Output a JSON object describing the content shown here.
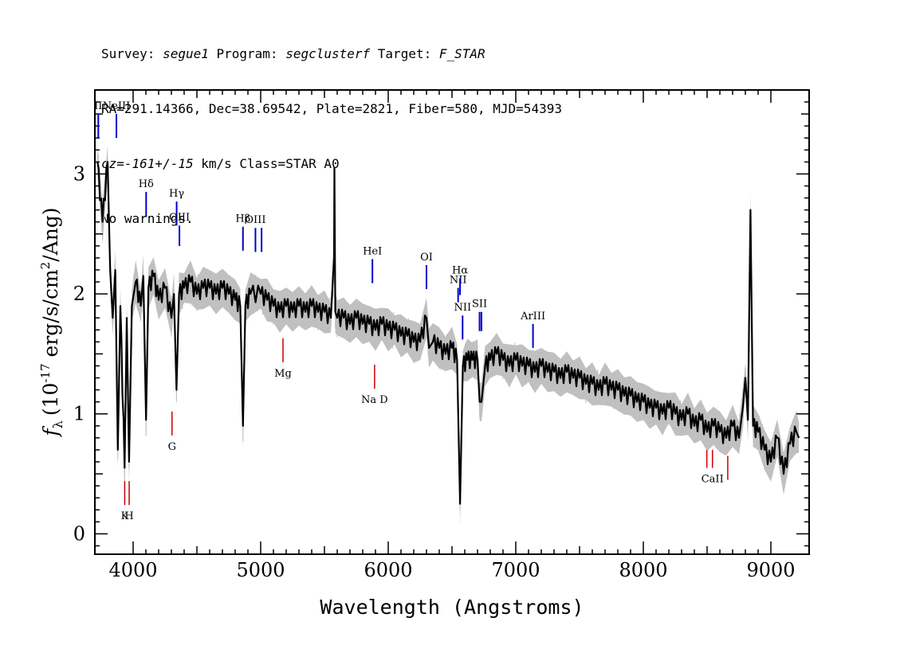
{
  "header": {
    "line1": {
      "survey_label": "Survey: ",
      "survey": "segue1",
      "program_label": " Program: ",
      "program": "segclusterf",
      "target_label": " Target: ",
      "target": "F_STAR"
    },
    "line2": "RA=291.14366, Dec=38.69542, Plate=2821, Fiber=580, MJD=54393",
    "line3": {
      "cz": "cz=-161+/-15",
      "rest": " km/s Class=STAR A0"
    },
    "line4": "No warnings."
  },
  "colors": {
    "flux": "#000000",
    "error_band": "#c0c0c0",
    "emission_marker": "#0000cc",
    "absorption_marker": "#cc0000",
    "axes": "#000000"
  },
  "chart_data": {
    "type": "line",
    "xlabel": "Wavelength (Angstroms)",
    "ylabel": {
      "symbol": "f",
      "subscript": "λ",
      "unit": "(10",
      "exp": "-17",
      "rest": " erg/s/cm",
      "exp2": "2",
      "tail": "/Ang)"
    },
    "xlim": [
      3700,
      9300
    ],
    "ylim": [
      -0.17,
      3.7
    ],
    "x_ticks": [
      4000,
      5000,
      6000,
      7000,
      8000,
      9000
    ],
    "y_ticks": [
      0,
      1,
      2,
      3
    ],
    "grid": false,
    "series": [
      {
        "values_xy": [
          [
            3720,
            3.1
          ],
          [
            3760,
            2.6
          ],
          [
            3800,
            3.1
          ],
          [
            3820,
            2.2
          ],
          [
            3840,
            1.8
          ],
          [
            3860,
            2.2
          ],
          [
            3880,
            0.7
          ],
          [
            3900,
            1.9
          ],
          [
            3933,
            0.55
          ],
          [
            3950,
            1.8
          ],
          [
            3968,
            0.6
          ],
          [
            3990,
            1.9
          ],
          [
            4020,
            2.1
          ],
          [
            4060,
            1.9
          ],
          [
            4080,
            2.15
          ],
          [
            4101,
            0.95
          ],
          [
            4120,
            2.05
          ],
          [
            4160,
            2.15
          ],
          [
            4200,
            1.95
          ],
          [
            4250,
            2.05
          ],
          [
            4300,
            1.8
          ],
          [
            4320,
            2.0
          ],
          [
            4340,
            1.2
          ],
          [
            4360,
            2.0
          ],
          [
            4400,
            2.05
          ],
          [
            4450,
            2.1
          ],
          [
            4500,
            2.0
          ],
          [
            4550,
            2.05
          ],
          [
            4600,
            2.05
          ],
          [
            4650,
            2.0
          ],
          [
            4700,
            2.05
          ],
          [
            4750,
            2.0
          ],
          [
            4800,
            1.95
          ],
          [
            4840,
            1.9
          ],
          [
            4861,
            0.9
          ],
          [
            4880,
            1.9
          ],
          [
            4920,
            2.0
          ],
          [
            5000,
            2.0
          ],
          [
            5050,
            1.95
          ],
          [
            5100,
            1.9
          ],
          [
            5150,
            1.85
          ],
          [
            5200,
            1.9
          ],
          [
            5250,
            1.85
          ],
          [
            5300,
            1.9
          ],
          [
            5350,
            1.85
          ],
          [
            5400,
            1.9
          ],
          [
            5450,
            1.85
          ],
          [
            5500,
            1.85
          ],
          [
            5550,
            1.8
          ],
          [
            5575,
            2.3
          ],
          [
            5578,
            3.05
          ],
          [
            5585,
            1.85
          ],
          [
            5600,
            1.8
          ],
          [
            5650,
            1.8
          ],
          [
            5700,
            1.75
          ],
          [
            5750,
            1.8
          ],
          [
            5800,
            1.75
          ],
          [
            5850,
            1.75
          ],
          [
            5900,
            1.7
          ],
          [
            5950,
            1.75
          ],
          [
            6000,
            1.7
          ],
          [
            6050,
            1.7
          ],
          [
            6100,
            1.65
          ],
          [
            6150,
            1.65
          ],
          [
            6200,
            1.6
          ],
          [
            6250,
            1.6
          ],
          [
            6300,
            1.8
          ],
          [
            6320,
            1.55
          ],
          [
            6350,
            1.6
          ],
          [
            6400,
            1.55
          ],
          [
            6450,
            1.5
          ],
          [
            6500,
            1.55
          ],
          [
            6540,
            1.45
          ],
          [
            6563,
            0.25
          ],
          [
            6585,
            1.4
          ],
          [
            6620,
            1.45
          ],
          [
            6660,
            1.45
          ],
          [
            6700,
            1.45
          ],
          [
            6717,
            1.1
          ],
          [
            6731,
            1.1
          ],
          [
            6760,
            1.4
          ],
          [
            6800,
            1.45
          ],
          [
            6850,
            1.5
          ],
          [
            6900,
            1.45
          ],
          [
            6950,
            1.4
          ],
          [
            7000,
            1.45
          ],
          [
            7050,
            1.4
          ],
          [
            7100,
            1.4
          ],
          [
            7150,
            1.35
          ],
          [
            7200,
            1.4
          ],
          [
            7250,
            1.35
          ],
          [
            7300,
            1.35
          ],
          [
            7350,
            1.3
          ],
          [
            7400,
            1.35
          ],
          [
            7450,
            1.3
          ],
          [
            7500,
            1.3
          ],
          [
            7550,
            1.25
          ],
          [
            7600,
            1.25
          ],
          [
            7650,
            1.2
          ],
          [
            7700,
            1.25
          ],
          [
            7750,
            1.2
          ],
          [
            7800,
            1.2
          ],
          [
            7850,
            1.15
          ],
          [
            7900,
            1.15
          ],
          [
            7950,
            1.1
          ],
          [
            8000,
            1.1
          ],
          [
            8050,
            1.05
          ],
          [
            8100,
            1.05
          ],
          [
            8150,
            1.0
          ],
          [
            8200,
            1.05
          ],
          [
            8250,
            1.0
          ],
          [
            8300,
            0.95
          ],
          [
            8350,
            1.0
          ],
          [
            8400,
            0.9
          ],
          [
            8450,
            0.95
          ],
          [
            8500,
            0.85
          ],
          [
            8550,
            0.9
          ],
          [
            8600,
            0.85
          ],
          [
            8650,
            0.8
          ],
          [
            8700,
            0.9
          ],
          [
            8750,
            0.8
          ],
          [
            8780,
            1.05
          ],
          [
            8800,
            1.3
          ],
          [
            8820,
            0.95
          ],
          [
            8840,
            2.7
          ],
          [
            8860,
            0.9
          ],
          [
            8900,
            0.85
          ],
          [
            8950,
            0.7
          ],
          [
            9000,
            0.6
          ],
          [
            9050,
            0.8
          ],
          [
            9100,
            0.5
          ],
          [
            9150,
            0.75
          ],
          [
            9200,
            0.85
          ],
          [
            9220,
            0.8
          ]
        ]
      }
    ],
    "emission_lines": [
      {
        "label": "II",
        "wave": 3727,
        "y_low": 3.3,
        "y_high": 3.5
      },
      {
        "label": "NeIII",
        "wave": 3869,
        "y_low": 3.3,
        "y_high": 3.5
      },
      {
        "label": "Hδ",
        "wave": 4102,
        "y_low": 2.65,
        "y_high": 2.85
      },
      {
        "label": "Hγ",
        "wave": 4341,
        "y_low": 2.57,
        "y_high": 2.77
      },
      {
        "label": "OIII",
        "wave": 4363,
        "y_low": 2.4,
        "y_high": 2.57
      },
      {
        "label": "Hβ",
        "wave": 4861,
        "y_low": 2.36,
        "y_high": 2.56
      },
      {
        "label": "OIII",
        "wave": 4959,
        "y_low": 2.35,
        "y_high": 2.55
      },
      {
        "label": "",
        "wave": 5007,
        "y_low": 2.35,
        "y_high": 2.55
      },
      {
        "label": "HeI",
        "wave": 5876,
        "y_low": 2.09,
        "y_high": 2.29
      },
      {
        "label": "OI",
        "wave": 6300,
        "y_low": 2.04,
        "y_high": 2.24
      },
      {
        "label": "NII",
        "wave": 6548,
        "y_low": 1.93,
        "y_high": 2.05
      },
      {
        "label": "Hα",
        "wave": 6563,
        "y_low": 1.99,
        "y_high": 2.13
      },
      {
        "label": "NII",
        "wave": 6583,
        "y_low": 1.62,
        "y_high": 1.82
      },
      {
        "label": "SII",
        "wave": 6716,
        "y_low": 1.69,
        "y_high": 1.85
      },
      {
        "label": "",
        "wave": 6731,
        "y_low": 1.69,
        "y_high": 1.85
      },
      {
        "label": "ArIII",
        "wave": 7135,
        "y_low": 1.55,
        "y_high": 1.75
      }
    ],
    "absorption_lines": [
      {
        "label": "K",
        "wave": 3934,
        "y_low": 0.24,
        "y_high": 0.44
      },
      {
        "label": "H",
        "wave": 3969,
        "y_low": 0.24,
        "y_high": 0.44
      },
      {
        "label": "G",
        "wave": 4305,
        "y_low": 0.82,
        "y_high": 1.02
      },
      {
        "label": "Mg",
        "wave": 5175,
        "y_low": 1.43,
        "y_high": 1.63
      },
      {
        "label": "Na D",
        "wave": 5893,
        "y_low": 1.21,
        "y_high": 1.41
      },
      {
        "label": "",
        "wave": 8498,
        "y_low": 0.55,
        "y_high": 0.7
      },
      {
        "label": "CaII",
        "wave": 8542,
        "y_low": 0.55,
        "y_high": 0.7
      },
      {
        "label": "",
        "wave": 8662,
        "y_low": 0.45,
        "y_high": 0.65
      }
    ]
  }
}
